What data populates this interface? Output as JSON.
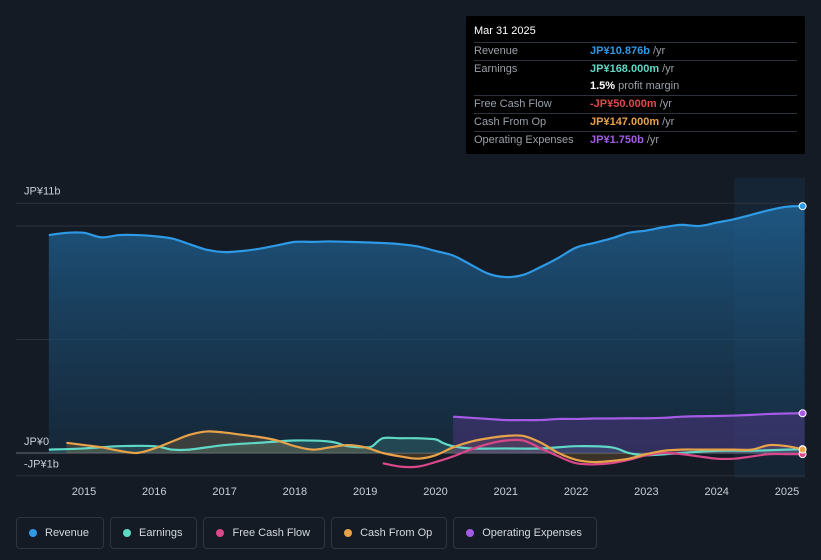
{
  "tooltip": {
    "date": "Mar 31 2025",
    "rows": [
      {
        "label": "Revenue",
        "value": "JP¥10.876b",
        "unit": "/yr",
        "color": "#2e9ae6"
      },
      {
        "label": "Earnings",
        "value": "JP¥168.000m",
        "unit": "/yr",
        "color": "#5fd8c5"
      },
      {
        "label": "",
        "value": "1.5%",
        "unit": "profit margin",
        "color": "#ffffff"
      },
      {
        "label": "Free Cash Flow",
        "value": "-JP¥50.000m",
        "unit": "/yr",
        "color": "#e04a4a"
      },
      {
        "label": "Cash From Op",
        "value": "JP¥147.000m",
        "unit": "/yr",
        "color": "#e8a24a"
      },
      {
        "label": "Operating Expenses",
        "value": "JP¥1.750b",
        "unit": "/yr",
        "color": "#a55be6"
      }
    ]
  },
  "legend": [
    {
      "label": "Revenue",
      "color": "#2e9ae6"
    },
    {
      "label": "Earnings",
      "color": "#5fd8c5"
    },
    {
      "label": "Free Cash Flow",
      "color": "#d9488a"
    },
    {
      "label": "Cash From Op",
      "color": "#e8a24a"
    },
    {
      "label": "Operating Expenses",
      "color": "#a55be6"
    }
  ],
  "chart_data": {
    "type": "line",
    "title": "",
    "xlabel": "",
    "ylabel": "",
    "y_tick_labels": [
      "JP¥11b",
      "JP¥0",
      "-JP¥1b"
    ],
    "ylim": [
      -1,
      11
    ],
    "xlim": [
      2014.5,
      2025.25
    ],
    "x_ticks": [
      2015,
      2016,
      2017,
      2018,
      2019,
      2020,
      2021,
      2022,
      2023,
      2024,
      2025
    ],
    "x_tick_labels": [
      "2015",
      "2016",
      "2017",
      "2018",
      "2019",
      "2020",
      "2021",
      "2022",
      "2023",
      "2024",
      "2025"
    ],
    "series": [
      {
        "name": "Revenue",
        "color": "#2e9ae6",
        "fill": true,
        "x": [
          2014.5,
          2014.75,
          2015.0,
          2015.25,
          2015.5,
          2015.75,
          2016.0,
          2016.25,
          2016.5,
          2016.75,
          2017.0,
          2017.25,
          2017.5,
          2017.75,
          2018.0,
          2018.25,
          2018.5,
          2018.75,
          2019.0,
          2019.25,
          2019.5,
          2019.75,
          2020.0,
          2020.25,
          2020.5,
          2020.75,
          2021.0,
          2021.25,
          2021.5,
          2021.75,
          2022.0,
          2022.25,
          2022.5,
          2022.75,
          2023.0,
          2023.25,
          2023.5,
          2023.75,
          2024.0,
          2024.25,
          2024.5,
          2024.75,
          2025.0,
          2025.25
        ],
        "values": [
          9.6,
          9.7,
          9.7,
          9.5,
          9.6,
          9.6,
          9.55,
          9.45,
          9.2,
          8.95,
          8.85,
          8.9,
          9.0,
          9.15,
          9.3,
          9.3,
          9.32,
          9.3,
          9.28,
          9.25,
          9.2,
          9.1,
          8.9,
          8.7,
          8.3,
          7.9,
          7.75,
          7.85,
          8.2,
          8.6,
          9.05,
          9.25,
          9.45,
          9.7,
          9.8,
          9.95,
          10.05,
          10.0,
          10.15,
          10.3,
          10.5,
          10.7,
          10.85,
          10.876
        ]
      },
      {
        "name": "Earnings",
        "color": "#5fd8c5",
        "fill": true,
        "x": [
          2014.5,
          2015.0,
          2015.5,
          2016.0,
          2016.25,
          2016.5,
          2017.0,
          2017.5,
          2018.0,
          2018.5,
          2018.75,
          2019.0,
          2019.1,
          2019.25,
          2019.5,
          2019.75,
          2020.0,
          2020.1,
          2020.25,
          2020.5,
          2021.0,
          2021.5,
          2022.0,
          2022.5,
          2022.75,
          2023.0,
          2023.5,
          2024.0,
          2024.5,
          2025.0,
          2025.25
        ],
        "values": [
          0.15,
          0.2,
          0.3,
          0.3,
          0.15,
          0.15,
          0.35,
          0.45,
          0.55,
          0.5,
          0.3,
          0.25,
          0.3,
          0.65,
          0.65,
          0.65,
          0.6,
          0.45,
          0.3,
          0.2,
          0.2,
          0.2,
          0.3,
          0.25,
          0.0,
          -0.1,
          0.0,
          0.1,
          0.1,
          0.15,
          0.168
        ]
      },
      {
        "name": "Free Cash Flow",
        "color": "#d9488a",
        "fill": false,
        "x": [
          2019.25,
          2019.5,
          2019.75,
          2020.0,
          2020.25,
          2020.5,
          2020.75,
          2021.0,
          2021.25,
          2021.5,
          2021.75,
          2022.0,
          2022.25,
          2022.5,
          2022.75,
          2023.0,
          2023.25,
          2023.5,
          2023.75,
          2024.0,
          2024.25,
          2024.5,
          2024.75,
          2025.0,
          2025.25
        ],
        "values": [
          -0.45,
          -0.6,
          -0.6,
          -0.4,
          -0.15,
          0.15,
          0.4,
          0.55,
          0.55,
          0.2,
          -0.15,
          -0.45,
          -0.5,
          -0.45,
          -0.3,
          -0.1,
          0.0,
          -0.05,
          -0.15,
          -0.25,
          -0.25,
          -0.15,
          -0.05,
          -0.05,
          -0.05
        ]
      },
      {
        "name": "Cash From Op",
        "color": "#e8a24a",
        "fill": true,
        "x": [
          2014.75,
          2015.0,
          2015.25,
          2015.5,
          2015.75,
          2016.0,
          2016.25,
          2016.5,
          2016.75,
          2017.0,
          2017.25,
          2017.5,
          2017.75,
          2018.0,
          2018.25,
          2018.5,
          2018.75,
          2019.0,
          2019.25,
          2019.5,
          2019.75,
          2020.0,
          2020.25,
          2020.5,
          2020.75,
          2021.0,
          2021.25,
          2021.5,
          2021.75,
          2022.0,
          2022.25,
          2022.5,
          2022.75,
          2023.0,
          2023.25,
          2023.5,
          2023.75,
          2024.0,
          2024.25,
          2024.5,
          2024.75,
          2025.0,
          2025.25
        ],
        "values": [
          0.45,
          0.35,
          0.25,
          0.1,
          0.0,
          0.2,
          0.5,
          0.8,
          0.95,
          0.9,
          0.8,
          0.7,
          0.55,
          0.3,
          0.15,
          0.25,
          0.35,
          0.25,
          0.0,
          -0.15,
          -0.25,
          -0.1,
          0.25,
          0.5,
          0.65,
          0.75,
          0.75,
          0.45,
          0.0,
          -0.3,
          -0.4,
          -0.35,
          -0.25,
          -0.05,
          0.1,
          0.15,
          0.15,
          0.15,
          0.15,
          0.15,
          0.35,
          0.3,
          0.147
        ]
      },
      {
        "name": "Operating Expenses",
        "color": "#a55be6",
        "fill": true,
        "x": [
          2020.25,
          2020.5,
          2020.75,
          2021.0,
          2021.25,
          2021.5,
          2021.75,
          2022.0,
          2022.25,
          2022.5,
          2022.75,
          2023.0,
          2023.25,
          2023.5,
          2023.75,
          2024.0,
          2024.25,
          2024.5,
          2024.75,
          2025.0,
          2025.25
        ],
        "values": [
          1.6,
          1.55,
          1.5,
          1.45,
          1.45,
          1.45,
          1.5,
          1.5,
          1.52,
          1.52,
          1.53,
          1.53,
          1.55,
          1.6,
          1.62,
          1.63,
          1.65,
          1.68,
          1.72,
          1.74,
          1.75
        ]
      }
    ],
    "forecast_shade_start": 2024.25
  }
}
